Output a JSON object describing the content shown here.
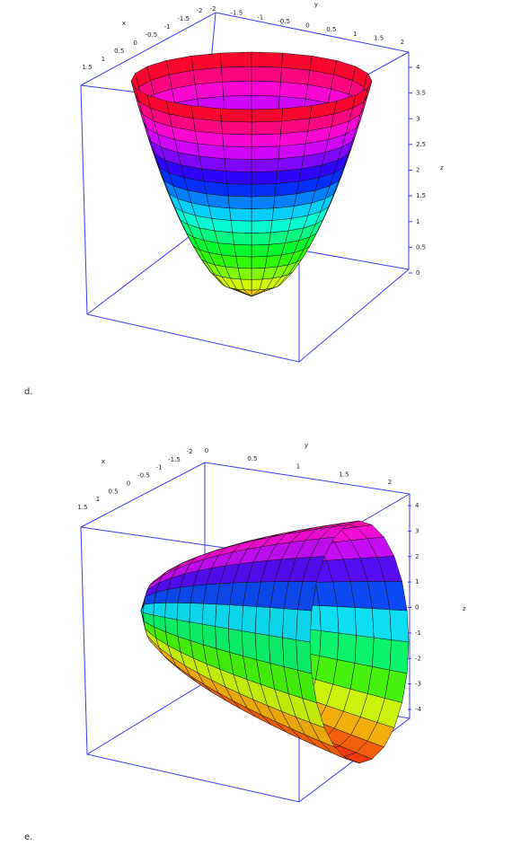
{
  "figures": [
    {
      "caption": "d.",
      "x_axis": {
        "label": "x",
        "ticks": [
          1.5,
          1,
          0.5,
          0,
          -0.5,
          -1,
          -1.5,
          -2
        ]
      },
      "y_axis": {
        "label": "y",
        "ticks": [
          -2,
          -1.5,
          -1,
          -0.5,
          0,
          0.5,
          1,
          1.5,
          2
        ]
      },
      "z_axis": {
        "label": "z",
        "ticks": [
          4,
          3.5,
          3,
          2.5,
          2,
          1.5,
          1,
          0.5,
          0
        ]
      }
    },
    {
      "caption": "e.",
      "x_axis": {
        "label": "x",
        "ticks": [
          1.5,
          1,
          0.5,
          0,
          -0.5,
          -1,
          -1.5,
          -2
        ]
      },
      "y_axis": {
        "label": "y",
        "ticks": [
          0,
          0.5,
          1,
          1.5,
          2
        ]
      },
      "z_axis": {
        "label": "z",
        "ticks": [
          4,
          3,
          2,
          1,
          0,
          -1,
          -2,
          -3,
          -4
        ]
      }
    }
  ]
}
